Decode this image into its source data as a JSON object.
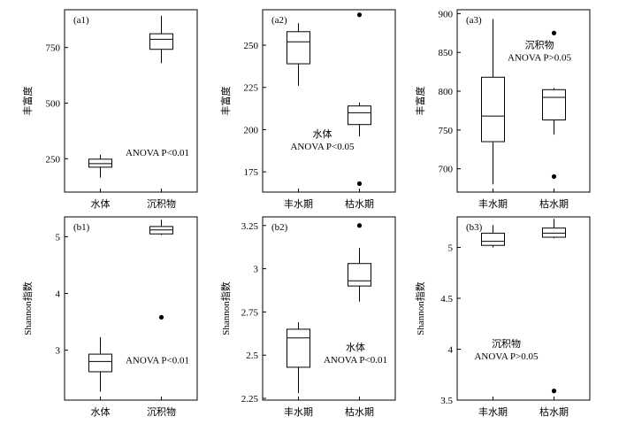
{
  "chart_data": [
    {
      "panel_label": "(a1)",
      "type": "box",
      "ylabel": "丰富度",
      "categories": [
        "水体",
        "沉积物"
      ],
      "ylim": [
        100,
        920
      ],
      "yticks": [
        250,
        500,
        750
      ],
      "boxes": [
        {
          "min": 165,
          "q1": 212,
          "median": 228,
          "q3": 248,
          "max": 268,
          "outliers": []
        },
        {
          "min": 680,
          "q1": 742,
          "median": 787,
          "q3": 812,
          "max": 893,
          "outliers": []
        }
      ],
      "annotation_lines": [
        "ANOVA  P<0.01"
      ],
      "annotation_pos": "lower-right"
    },
    {
      "panel_label": "(a2)",
      "type": "box",
      "ylabel": "丰富度",
      "categories": [
        "丰水期",
        "枯水期"
      ],
      "ylim": [
        163,
        271
      ],
      "yticks": [
        175,
        200,
        225,
        250
      ],
      "boxes": [
        {
          "min": 226,
          "q1": 239,
          "median": 252,
          "q3": 258,
          "max": 263,
          "outliers": []
        },
        {
          "min": 196,
          "q1": 203,
          "median": 210,
          "q3": 214,
          "max": 216,
          "outliers": [
            268,
            168
          ]
        }
      ],
      "annotation_lines": [
        "水体",
        "ANOVA  P<0.05"
      ],
      "annotation_pos": "lower-left"
    },
    {
      "panel_label": "(a3)",
      "type": "box",
      "ylabel": "丰富度",
      "categories": [
        "丰水期",
        "枯水期"
      ],
      "ylim": [
        670,
        905
      ],
      "yticks": [
        700,
        750,
        800,
        850,
        900
      ],
      "boxes": [
        {
          "min": 680,
          "q1": 735,
          "median": 768,
          "q3": 818,
          "max": 893,
          "outliers": []
        },
        {
          "min": 744,
          "q1": 763,
          "median": 792,
          "q3": 802,
          "max": 804,
          "outliers": [
            875,
            690
          ]
        }
      ],
      "annotation_lines": [
        "沉积物",
        "ANOVA  P>0.05"
      ],
      "annotation_pos": "upper-right"
    },
    {
      "panel_label": "(b1)",
      "type": "box",
      "ylabel": "Shannon指数",
      "categories": [
        "水体",
        "沉积物"
      ],
      "ylim": [
        2.12,
        5.35
      ],
      "yticks": [
        3,
        4,
        5
      ],
      "boxes": [
        {
          "min": 2.27,
          "q1": 2.62,
          "median": 2.8,
          "q3": 2.93,
          "max": 3.23,
          "outliers": []
        },
        {
          "min": 5.03,
          "q1": 5.05,
          "median": 5.12,
          "q3": 5.18,
          "max": 5.3,
          "outliers": [
            3.58
          ]
        }
      ],
      "annotation_lines": [
        "ANOVA  P<0.01"
      ],
      "annotation_pos": "lower-right"
    },
    {
      "panel_label": "(b2)",
      "type": "box",
      "ylabel": "Shannon指数",
      "categories": [
        "丰水期",
        "枯水期"
      ],
      "ylim": [
        2.24,
        3.3
      ],
      "yticks": [
        2.25,
        2.5,
        2.75,
        3.0,
        3.25
      ],
      "boxes": [
        {
          "min": 2.28,
          "q1": 2.43,
          "median": 2.6,
          "q3": 2.65,
          "max": 2.69,
          "outliers": []
        },
        {
          "min": 2.81,
          "q1": 2.9,
          "median": 2.93,
          "q3": 3.03,
          "max": 3.12,
          "outliers": [
            3.25
          ]
        }
      ],
      "annotation_lines": [
        "水体",
        "ANOVA  P<0.01"
      ],
      "annotation_pos": "lower-right"
    },
    {
      "panel_label": "(b3)",
      "type": "box",
      "ylabel": "Shannon指数",
      "categories": [
        "丰水期",
        "枯水期"
      ],
      "ylim": [
        3.5,
        5.3
      ],
      "yticks": [
        3.5,
        4.0,
        4.5,
        5.0
      ],
      "boxes": [
        {
          "min": 5.0,
          "q1": 5.02,
          "median": 5.06,
          "q3": 5.14,
          "max": 5.22,
          "outliers": []
        },
        {
          "min": 5.09,
          "q1": 5.1,
          "median": 5.14,
          "q3": 5.19,
          "max": 5.28,
          "outliers": [
            3.59
          ]
        }
      ],
      "annotation_lines": [
        "沉积物",
        "ANOVA  P>0.05"
      ],
      "annotation_pos": "lower-left"
    }
  ]
}
